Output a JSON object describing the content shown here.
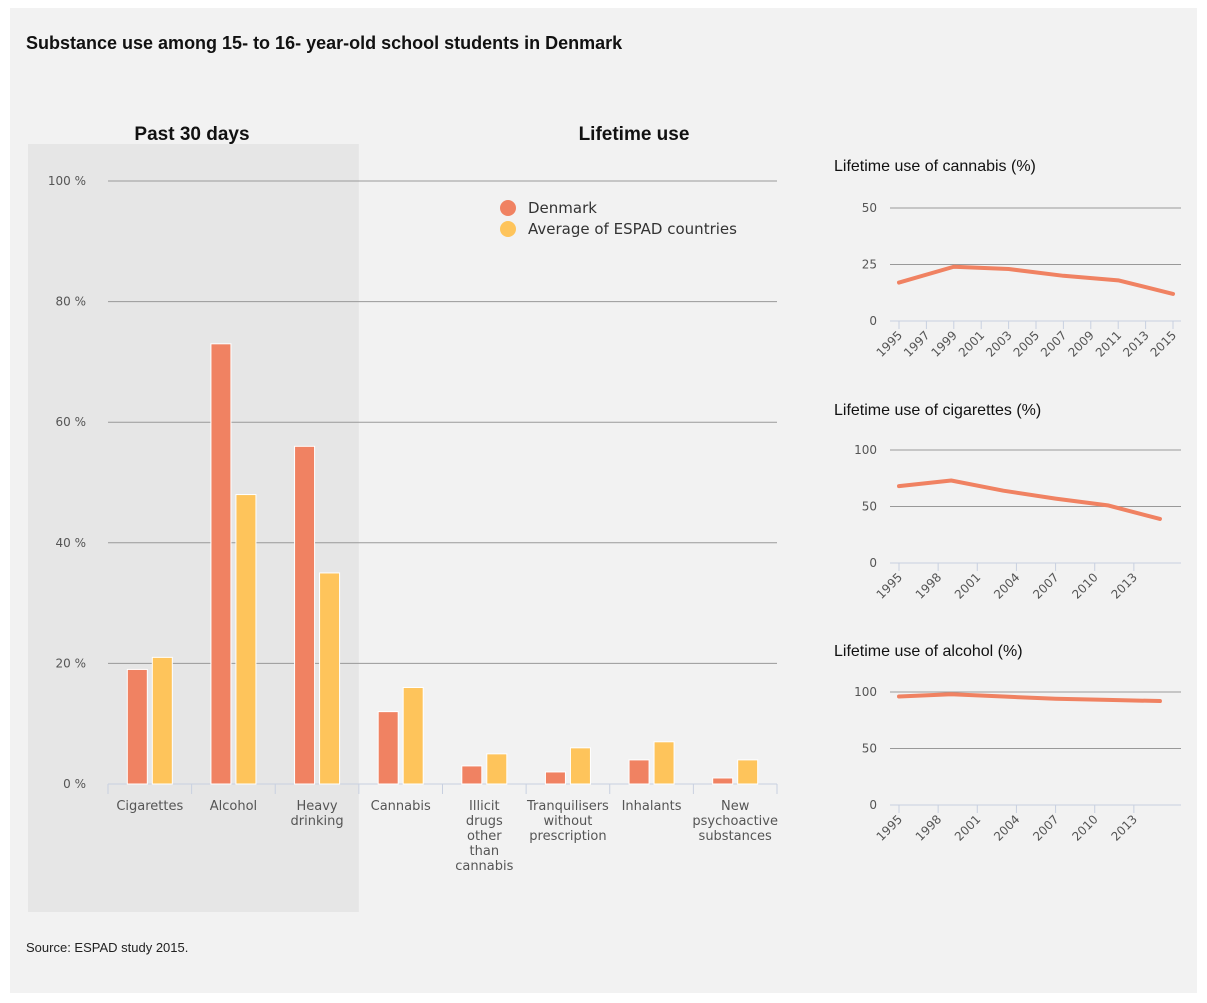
{
  "title": "Substance use among 15- to 16- year-old school students in Denmark",
  "source": "Source: ESPAD study 2015.",
  "colors": {
    "denmark": "#f08262",
    "espad": "#fec45b",
    "shade": "#e6e6e6",
    "grid": "#999999",
    "axis": "#c8d0e0"
  },
  "chart_data": [
    {
      "type": "bar",
      "section_labels": [
        "Past 30 days",
        "Lifetime use"
      ],
      "categories": [
        "Cigarettes",
        "Alcohol",
        "Heavy drinking",
        "Cannabis",
        "Illicit drugs other than cannabis",
        "Tranquilisers without prescription",
        "Inhalants",
        "New psychoactive substances"
      ],
      "category_lines": [
        [
          "Cigarettes"
        ],
        [
          "Alcohol"
        ],
        [
          "Heavy",
          "drinking"
        ],
        [
          "Cannabis"
        ],
        [
          "Illicit",
          "drugs",
          "other",
          "than",
          "cannabis"
        ],
        [
          "Tranquilisers",
          "without",
          "prescription"
        ],
        [
          "Inhalants"
        ],
        [
          "New",
          "psychoactive",
          "substances"
        ]
      ],
      "series": [
        {
          "name": "Denmark",
          "values": [
            19,
            73,
            56,
            12,
            3,
            2,
            4,
            1
          ]
        },
        {
          "name": "Average of ESPAD countries",
          "values": [
            21,
            48,
            35,
            16,
            5,
            6,
            7,
            4
          ]
        }
      ],
      "ylim": [
        0,
        100
      ],
      "yticks": [
        0,
        20,
        40,
        60,
        80,
        100
      ],
      "ytick_labels": [
        "0 %",
        "20 %",
        "40 %",
        "60 %",
        "80 %",
        "100 %"
      ],
      "shaded_categories": 3,
      "legend": "top-right"
    },
    {
      "type": "line",
      "title": "Lifetime use of cannabis (%)",
      "x": [
        1995,
        1999,
        2003,
        2007,
        2011,
        2015
      ],
      "y": [
        17,
        24,
        23,
        20,
        18,
        12
      ],
      "xlim": [
        1995,
        2015
      ],
      "xticks": [
        1995,
        1997,
        1999,
        2001,
        2003,
        2005,
        2007,
        2009,
        2011,
        2013,
        2015
      ],
      "ylim": [
        0,
        50
      ],
      "yticks": [
        0,
        25,
        50
      ]
    },
    {
      "type": "line",
      "title": "Lifetime use of cigarettes (%)",
      "x": [
        1995,
        1999,
        2003,
        2007,
        2011,
        2015
      ],
      "y": [
        68,
        73,
        64,
        57,
        51,
        39
      ],
      "xlim": [
        1995,
        2016
      ],
      "xticks": [
        1995,
        1998,
        2001,
        2004,
        2007,
        2010,
        2013
      ],
      "ylim": [
        0,
        100
      ],
      "yticks": [
        0,
        50,
        100
      ]
    },
    {
      "type": "line",
      "title": "Lifetime use of alcohol (%)",
      "x": [
        1995,
        1999,
        2003,
        2007,
        2011,
        2015
      ],
      "y": [
        96,
        98,
        96,
        94,
        93,
        92
      ],
      "xlim": [
        1995,
        2016
      ],
      "xticks": [
        1995,
        1998,
        2001,
        2004,
        2007,
        2010,
        2013
      ],
      "ylim": [
        0,
        100
      ],
      "yticks": [
        0,
        50,
        100
      ]
    }
  ]
}
